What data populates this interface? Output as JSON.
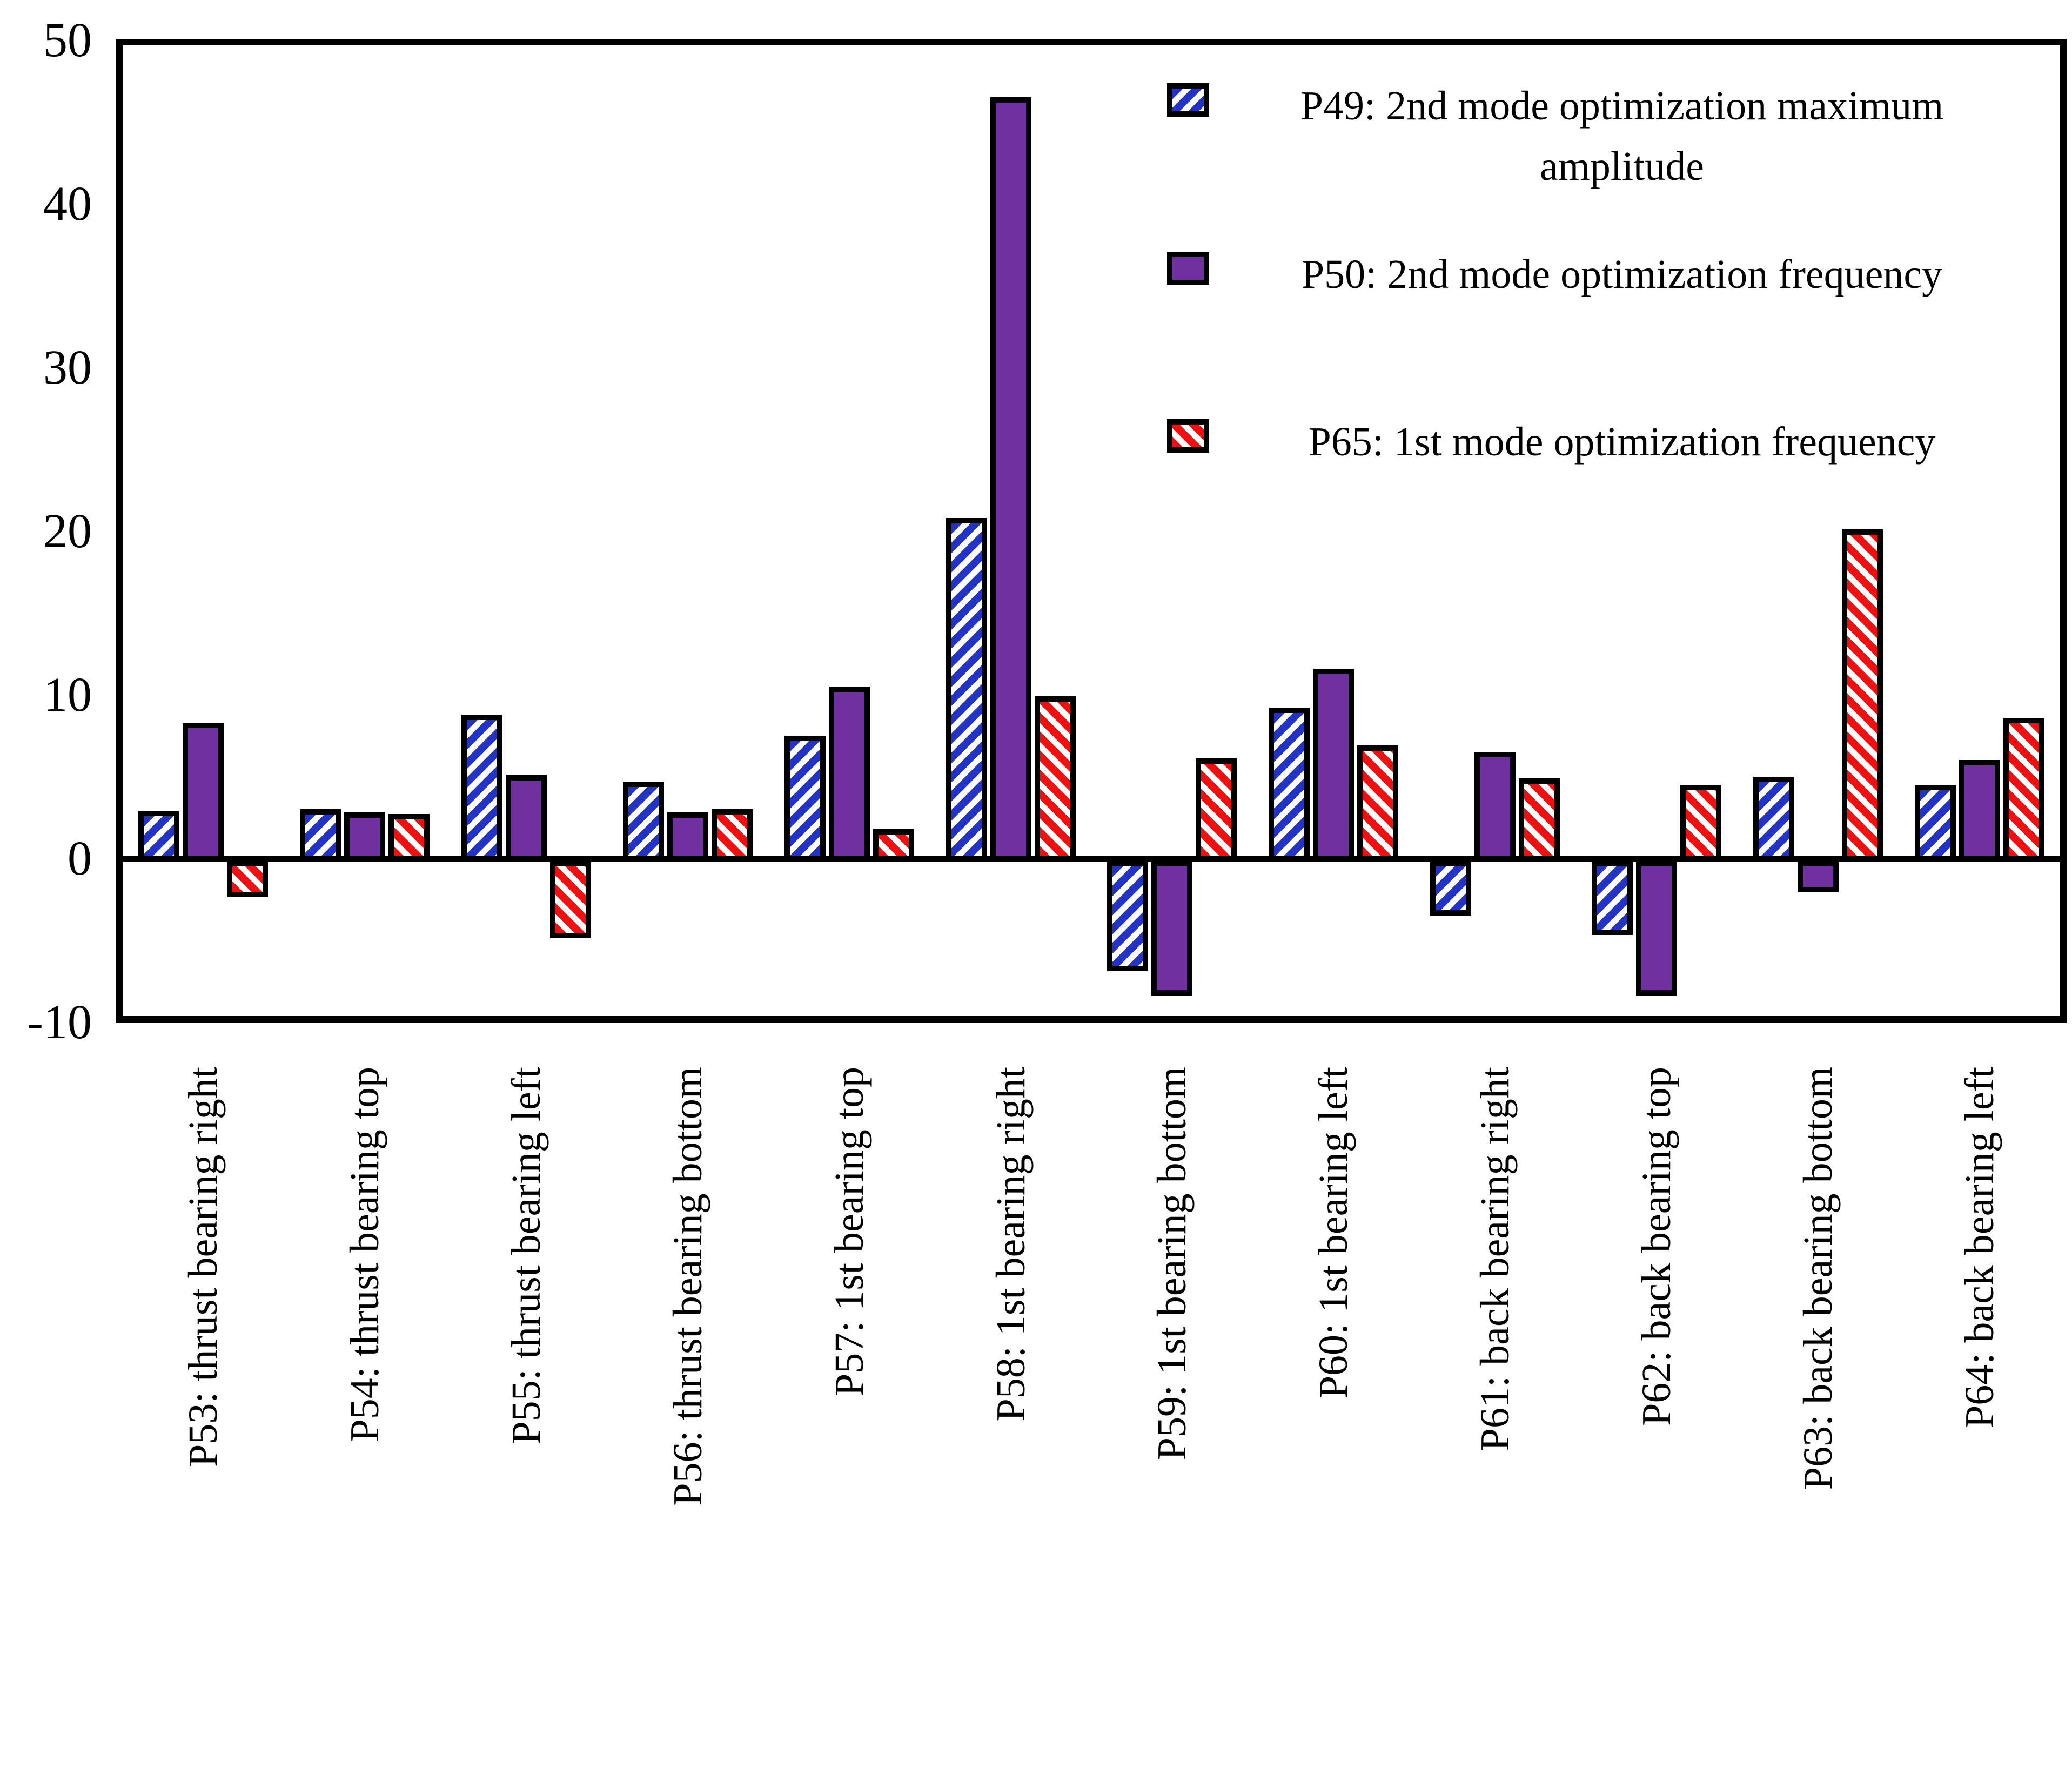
{
  "chart_data": {
    "type": "bar",
    "title": "",
    "xlabel": "",
    "ylabel": "",
    "ylim": [
      -10,
      50
    ],
    "yticks": [
      50,
      40,
      30,
      20,
      10,
      0,
      -10
    ],
    "grid": false,
    "legend_position": "top-right-inside",
    "categories": [
      "P53: thrust bearing right",
      "P54: thrust bearing top",
      "P55: thrust bearing left",
      "P56: thrust bearing bottom",
      "P57: 1st bearing top",
      "P58: 1st bearing right",
      "P59: 1st bearing bottom",
      "P60: 1st bearing left",
      "P61: back bearing right",
      "P62: back bearing top",
      "P63: back bearing bottom",
      "P64: back bearing left"
    ],
    "series": [
      {
        "name": "P49: 2nd mode optimization maximum amplitude",
        "color": "#2333C4",
        "pattern": "diagonal-up",
        "values": [
          2.4,
          2.5,
          8.3,
          4.2,
          7.0,
          20.3,
          -6.0,
          8.7,
          -2.6,
          -3.8,
          4.5,
          4.0
        ]
      },
      {
        "name": "P50: 2nd mode optimization frequency",
        "color": "#7030A0",
        "pattern": "solid",
        "values": [
          7.8,
          2.3,
          4.6,
          2.3,
          10.0,
          46.0,
          -7.5,
          11.1,
          6.0,
          -7.5,
          -1.2,
          5.5
        ]
      },
      {
        "name": "P65: 1st mode optimization frequency",
        "color": "#EE1111",
        "pattern": "diagonal-down",
        "values": [
          -1.5,
          2.2,
          -4.0,
          2.5,
          1.3,
          9.4,
          5.6,
          6.4,
          4.4,
          4.0,
          19.6,
          8.1
        ]
      }
    ]
  }
}
